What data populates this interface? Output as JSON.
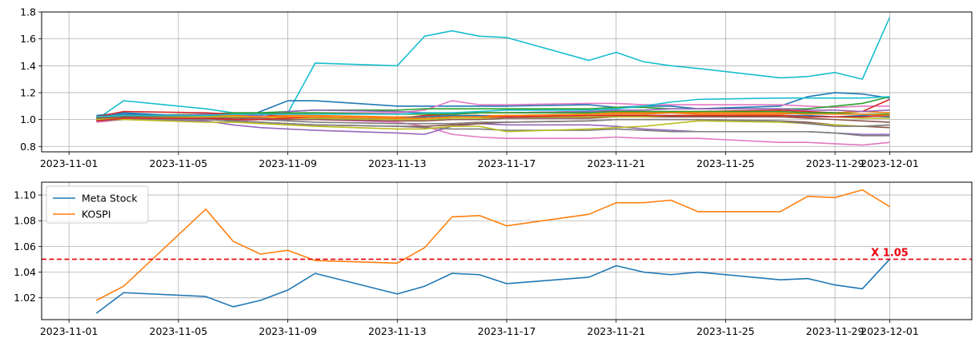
{
  "chart_data": [
    {
      "type": "line",
      "title": "",
      "xlabel": "",
      "ylabel": "",
      "x_range": [
        "2023-10-31",
        "2023-12-04"
      ],
      "ylim": [
        0.76,
        1.8
      ],
      "x_ticks": [
        "2023-11-01",
        "2023-11-05",
        "2023-11-09",
        "2023-11-13",
        "2023-11-17",
        "2023-11-21",
        "2023-11-25",
        "2023-11-29",
        "2023-12-01"
      ],
      "y_ticks": [
        "0.8",
        "1.0",
        "1.2",
        "1.4",
        "1.6",
        "1.8"
      ],
      "grid": true,
      "legend": "none",
      "x": [
        "2023-11-02",
        "2023-11-03",
        "2023-11-06",
        "2023-11-07",
        "2023-11-08",
        "2023-11-09",
        "2023-11-10",
        "2023-11-13",
        "2023-11-14",
        "2023-11-15",
        "2023-11-16",
        "2023-11-17",
        "2023-11-20",
        "2023-11-21",
        "2023-11-22",
        "2023-11-23",
        "2023-11-24",
        "2023-11-27",
        "2023-11-28",
        "2023-11-29",
        "2023-11-30",
        "2023-12-01"
      ],
      "series": [
        {
          "color": "#17becf",
          "values": [
            1.0,
            1.14,
            1.08,
            1.05,
            1.05,
            1.05,
            1.42,
            1.4,
            1.62,
            1.66,
            1.62,
            1.61,
            1.44,
            1.5,
            1.43,
            1.4,
            1.38,
            1.31,
            1.32,
            1.35,
            1.3,
            1.76
          ]
        },
        {
          "color": "#1f77b4",
          "values": [
            1.03,
            1.05,
            1.02,
            0.98,
            1.06,
            1.14,
            1.14,
            1.1,
            1.1,
            1.1,
            1.1,
            1.1,
            1.11,
            1.09,
            1.1,
            1.1,
            1.08,
            1.1,
            1.17,
            1.2,
            1.19,
            1.16
          ]
        },
        {
          "color": "#e377c2",
          "values": [
            0.98,
            1.0,
            1.0,
            0.99,
            1.0,
            1.0,
            1.0,
            0.98,
            0.95,
            0.89,
            0.87,
            0.86,
            0.86,
            0.87,
            0.86,
            0.86,
            0.86,
            0.83,
            0.83,
            0.82,
            0.81,
            0.83
          ]
        },
        {
          "color": "#e377c2",
          "values": [
            1.0,
            1.0,
            1.01,
            1.01,
            1.02,
            1.04,
            1.05,
            1.05,
            1.07,
            1.14,
            1.11,
            1.11,
            1.12,
            1.12,
            1.11,
            1.11,
            1.11,
            1.11,
            1.1,
            1.09,
            1.1,
            1.1
          ]
        },
        {
          "color": "#2ca02c",
          "values": [
            1.01,
            1.03,
            1.04,
            1.05,
            1.05,
            1.06,
            1.07,
            1.07,
            1.08,
            1.08,
            1.08,
            1.08,
            1.08,
            1.09,
            1.09,
            1.08,
            1.08,
            1.08,
            1.08,
            1.1,
            1.12,
            1.17
          ]
        },
        {
          "color": "#d62728",
          "values": [
            1.02,
            1.06,
            1.05,
            1.04,
            1.04,
            1.02,
            1.01,
            1.01,
            1.03,
            1.04,
            1.05,
            1.05,
            1.06,
            1.06,
            1.05,
            1.06,
            1.06,
            1.07,
            1.06,
            1.05,
            1.06,
            1.15
          ]
        },
        {
          "color": "#9467bd",
          "values": [
            1.02,
            1.0,
            0.99,
            0.96,
            0.94,
            0.93,
            0.92,
            0.9,
            0.89,
            0.95,
            0.97,
            0.96,
            0.96,
            0.95,
            0.93,
            0.92,
            0.91,
            0.91,
            0.91,
            0.9,
            0.89,
            0.89
          ]
        },
        {
          "color": "#8c564b",
          "values": [
            1.0,
            1.02,
            1.0,
            0.99,
            0.98,
            0.97,
            0.96,
            0.95,
            0.95,
            0.96,
            0.97,
            0.98,
            0.99,
            1.0,
            1.0,
            1.0,
            1.0,
            0.99,
            0.98,
            0.96,
            0.95,
            0.94
          ]
        },
        {
          "color": "#7f7f7f",
          "values": [
            0.99,
            1.0,
            1.0,
            0.99,
            0.98,
            0.97,
            0.96,
            0.95,
            0.94,
            0.93,
            0.93,
            0.92,
            0.92,
            0.93,
            0.92,
            0.91,
            0.91,
            0.91,
            0.91,
            0.9,
            0.88,
            0.88
          ]
        },
        {
          "color": "#bcbd22",
          "values": [
            1.0,
            1.0,
            0.98,
            0.98,
            0.97,
            0.96,
            0.95,
            0.93,
            0.93,
            0.95,
            0.95,
            0.91,
            0.93,
            0.94,
            0.95,
            0.97,
            0.99,
            0.98,
            0.97,
            0.96,
            0.95,
            0.96
          ]
        },
        {
          "color": "#ff7f0e",
          "values": [
            1.01,
            1.03,
            1.03,
            1.02,
            1.02,
            1.03,
            1.03,
            1.02,
            1.02,
            1.03,
            1.03,
            1.03,
            1.04,
            1.05,
            1.05,
            1.05,
            1.04,
            1.04,
            1.05,
            1.05,
            1.06,
            1.05
          ]
        },
        {
          "color": "#1f77b4",
          "values": [
            1.02,
            1.04,
            1.03,
            1.02,
            1.02,
            1.02,
            1.01,
            1.01,
            1.02,
            1.03,
            1.03,
            1.02,
            1.02,
            1.03,
            1.03,
            1.03,
            1.03,
            1.03,
            1.03,
            1.02,
            1.03,
            1.02
          ]
        },
        {
          "color": "#9467bd",
          "values": [
            0.99,
            1.02,
            1.04,
            1.03,
            1.03,
            1.06,
            1.07,
            1.06,
            1.05,
            1.05,
            1.05,
            1.05,
            1.06,
            1.07,
            1.07,
            1.08,
            1.08,
            1.08,
            1.07,
            1.07,
            1.06,
            1.07
          ]
        },
        {
          "color": "#2ca02c",
          "values": [
            1.0,
            1.02,
            1.03,
            1.04,
            1.04,
            1.05,
            1.05,
            1.04,
            1.04,
            1.04,
            1.05,
            1.05,
            1.05,
            1.06,
            1.06,
            1.06,
            1.06,
            1.06,
            1.05,
            1.05,
            1.04,
            1.04
          ]
        },
        {
          "color": "#8c564b",
          "values": [
            1.01,
            1.02,
            1.02,
            1.01,
            1.01,
            1.0,
            1.0,
            0.99,
            0.99,
            1.0,
            1.0,
            1.01,
            1.01,
            1.02,
            1.02,
            1.02,
            1.02,
            1.02,
            1.01,
            1.0,
            0.99,
            0.98
          ]
        },
        {
          "color": "#7f7f7f",
          "values": [
            1.0,
            1.01,
            1.01,
            1.0,
            1.0,
            0.99,
            0.98,
            0.97,
            0.97,
            0.97,
            0.98,
            0.98,
            0.99,
            1.0,
            1.0,
            1.0,
            1.0,
            0.99,
            0.97,
            0.95,
            0.95,
            0.96
          ]
        },
        {
          "color": "#bcbd22",
          "values": [
            1.0,
            1.01,
            1.02,
            1.02,
            1.02,
            1.01,
            1.01,
            1.0,
            1.0,
            1.01,
            1.01,
            1.02,
            1.02,
            1.02,
            1.02,
            1.03,
            1.03,
            1.03,
            1.02,
            1.02,
            1.01,
            1.01
          ]
        },
        {
          "color": "#d62728",
          "values": [
            0.99,
            1.01,
            1.01,
            1.0,
            1.0,
            1.01,
            1.02,
            1.01,
            1.01,
            1.02,
            1.02,
            1.02,
            1.03,
            1.03,
            1.03,
            1.03,
            1.03,
            1.03,
            1.02,
            1.02,
            1.02,
            1.03
          ]
        },
        {
          "color": "#ff7f0e",
          "values": [
            1.02,
            1.03,
            1.03,
            1.03,
            1.02,
            1.02,
            1.02,
            1.01,
            1.01,
            1.02,
            1.02,
            1.03,
            1.04,
            1.04,
            1.04,
            1.05,
            1.05,
            1.05,
            1.04,
            1.04,
            1.04,
            1.03
          ]
        },
        {
          "color": "#17becf",
          "values": [
            1.02,
            1.03,
            1.03,
            1.04,
            1.04,
            1.04,
            1.04,
            1.04,
            1.05,
            1.05,
            1.06,
            1.07,
            1.07,
            1.08,
            1.1,
            1.13,
            1.15,
            1.16,
            1.16,
            1.16,
            1.16,
            1.17
          ]
        }
      ]
    },
    {
      "type": "line",
      "title": "",
      "xlabel": "",
      "ylabel": "",
      "x_range": [
        "2023-10-31",
        "2023-12-04"
      ],
      "ylim": [
        1.003,
        1.11
      ],
      "x_ticks": [
        "2023-11-01",
        "2023-11-05",
        "2023-11-09",
        "2023-11-13",
        "2023-11-17",
        "2023-11-21",
        "2023-11-25",
        "2023-11-29",
        "2023-12-01"
      ],
      "y_ticks": [
        "1.02",
        "1.04",
        "1.06",
        "1.08",
        "1.10"
      ],
      "grid": true,
      "legend": "upper-left",
      "x": [
        "2023-11-02",
        "2023-11-03",
        "2023-11-06",
        "2023-11-07",
        "2023-11-08",
        "2023-11-09",
        "2023-11-10",
        "2023-11-13",
        "2023-11-14",
        "2023-11-15",
        "2023-11-16",
        "2023-11-17",
        "2023-11-20",
        "2023-11-21",
        "2023-11-22",
        "2023-11-23",
        "2023-11-24",
        "2023-11-27",
        "2023-11-28",
        "2023-11-29",
        "2023-11-30",
        "2023-12-01"
      ],
      "series": [
        {
          "name": "Meta Stock",
          "color": "#1f77b4",
          "values": [
            1.008,
            1.024,
            1.021,
            1.013,
            1.018,
            1.026,
            1.039,
            1.023,
            1.029,
            1.039,
            1.038,
            1.031,
            1.036,
            1.045,
            1.04,
            1.038,
            1.04,
            1.034,
            1.035,
            1.03,
            1.027,
            1.05
          ]
        },
        {
          "name": "KOSPI",
          "color": "#ff7f0e",
          "values": [
            1.018,
            1.029,
            1.089,
            1.064,
            1.054,
            1.057,
            1.049,
            1.047,
            1.059,
            1.083,
            1.084,
            1.076,
            1.085,
            1.094,
            1.094,
            1.096,
            1.087,
            1.087,
            1.099,
            1.098,
            1.104,
            1.091
          ]
        }
      ],
      "hline": {
        "y": 1.05,
        "color": "#e8000b",
        "style": "dashed",
        "label": "X 1.05"
      }
    }
  ]
}
